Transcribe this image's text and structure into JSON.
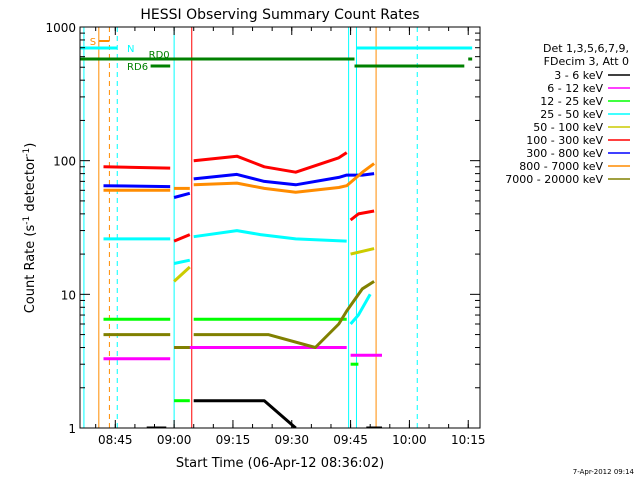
{
  "chart_data": {
    "type": "line",
    "title": "HESSI Observing Summary Count Rates",
    "xlabel": "Start Time (06-Apr-12 08:36:02)",
    "ylabel_main": "Count Rate (s",
    "ylabel_sup1": "-1",
    "ylabel_mid": " detector",
    "ylabel_sup2": "-1",
    "ylabel_end": ")",
    "x_unit": "minutes since 08:36:02",
    "x_range": [
      0,
      102
    ],
    "yscale": "log",
    "ylim": [
      1,
      1000
    ],
    "x_ticks": [
      {
        "v": 9,
        "label": "08:45"
      },
      {
        "v": 24,
        "label": "09:00"
      },
      {
        "v": 39,
        "label": "09:15"
      },
      {
        "v": 54,
        "label": "09:30"
      },
      {
        "v": 69,
        "label": "09:45"
      },
      {
        "v": 84,
        "label": "10:00"
      },
      {
        "v": 99,
        "label": "10:15"
      }
    ],
    "y_ticks": [
      {
        "v": 1,
        "label": "1"
      },
      {
        "v": 10,
        "label": "10"
      },
      {
        "v": 100,
        "label": "100"
      },
      {
        "v": 1000,
        "label": "1000"
      }
    ],
    "legend": {
      "header1": "Det 1,3,5,6,7,9,",
      "header2": "FDecim 3, Att 0",
      "entries": [
        {
          "label": "3 - 6 keV",
          "color": "#000000"
        },
        {
          "label": "6 - 12 keV",
          "color": "#ff00ff"
        },
        {
          "label": "12 - 25 keV",
          "color": "#00ff00"
        },
        {
          "label": "25 - 50 keV",
          "color": "#00ffff"
        },
        {
          "label": "50 - 100 keV",
          "color": "#cccc00"
        },
        {
          "label": "100 - 300 keV",
          "color": "#ff0000"
        },
        {
          "label": "300 - 800 keV",
          "color": "#0000ff"
        },
        {
          "label": "800 - 7000 keV",
          "color": "#ff8c00"
        },
        {
          "label": "7000 - 20000 keV",
          "color": "#808000"
        }
      ]
    },
    "flags": [
      {
        "label": "S",
        "color": "#ff8c00"
      },
      {
        "label": "N",
        "color": "#00ffff"
      },
      {
        "label": "RD0",
        "color": "#008000"
      },
      {
        "label": "RD6",
        "color": "#008000"
      }
    ],
    "series": [
      {
        "name": "3 - 6 keV",
        "color": "#000000",
        "segments": [
          [
            [
              17,
              1
            ],
            [
              22,
              1
            ]
          ],
          [
            [
              29,
              1.6
            ],
            [
              38,
              1.6
            ],
            [
              47,
              1.6
            ],
            [
              55,
              1
            ]
          ],
          [
            [
              73,
              1
            ],
            [
              77,
              1
            ]
          ]
        ]
      },
      {
        "name": "6 - 12 keV",
        "color": "#ff00ff",
        "segments": [
          [
            [
              6,
              3.3
            ],
            [
              23,
              3.3
            ]
          ],
          [
            [
              24,
              4
            ],
            [
              68,
              4
            ]
          ],
          [
            [
              69,
              3.5
            ],
            [
              77,
              3.5
            ]
          ]
        ]
      },
      {
        "name": "12 - 25 keV",
        "color": "#00ff00",
        "segments": [
          [
            [
              6,
              6.5
            ],
            [
              23,
              6.5
            ]
          ],
          [
            [
              24,
              1.6
            ],
            [
              28,
              1.6
            ]
          ],
          [
            [
              29,
              6.5
            ],
            [
              68,
              6.5
            ]
          ],
          [
            [
              69,
              3
            ],
            [
              71,
              3
            ]
          ]
        ]
      },
      {
        "name": "25 - 50 keV",
        "color": "#00ffff",
        "segments": [
          [
            [
              6,
              26
            ],
            [
              23,
              26
            ]
          ],
          [
            [
              24,
              17
            ],
            [
              28,
              18
            ]
          ],
          [
            [
              29,
              27
            ],
            [
              40,
              30
            ],
            [
              46,
              28
            ],
            [
              55,
              26
            ],
            [
              68,
              25
            ]
          ],
          [
            [
              69,
              6
            ],
            [
              71,
              7
            ],
            [
              74,
              10
            ]
          ]
        ]
      },
      {
        "name": "50 - 100 keV",
        "color": "#cccc00",
        "segments": [
          [
            [
              24,
              12.5
            ],
            [
              28,
              16
            ]
          ],
          [
            [
              69,
              20
            ],
            [
              75,
              22
            ]
          ]
        ]
      },
      {
        "name": "100 - 300 keV",
        "color": "#ff0000",
        "segments": [
          [
            [
              6,
              90
            ],
            [
              23,
              88
            ]
          ],
          [
            [
              24,
              25
            ],
            [
              28,
              28
            ]
          ],
          [
            [
              29,
              100
            ],
            [
              40,
              108
            ],
            [
              47,
              90
            ],
            [
              55,
              82
            ],
            [
              66,
              105
            ],
            [
              68,
              115
            ]
          ],
          [
            [
              69,
              36
            ],
            [
              71,
              40
            ],
            [
              75,
              42
            ]
          ]
        ]
      },
      {
        "name": "300 - 800 keV",
        "color": "#0000ff",
        "segments": [
          [
            [
              6,
              65
            ],
            [
              23,
              64
            ]
          ],
          [
            [
              24,
              53
            ],
            [
              28,
              57
            ]
          ],
          [
            [
              29,
              73
            ],
            [
              40,
              79
            ],
            [
              47,
              70
            ],
            [
              55,
              66
            ],
            [
              66,
              75
            ],
            [
              68,
              78
            ],
            [
              72,
              78
            ],
            [
              75,
              80
            ]
          ]
        ]
      },
      {
        "name": "800 - 7000 keV",
        "color": "#ff8c00",
        "segments": [
          [
            [
              6,
              60
            ],
            [
              23,
              60
            ]
          ],
          [
            [
              24,
              62
            ],
            [
              28,
              62
            ]
          ],
          [
            [
              29,
              66
            ],
            [
              40,
              68
            ],
            [
              47,
              62
            ],
            [
              55,
              58
            ],
            [
              66,
              63
            ],
            [
              68,
              65
            ],
            [
              72,
              82
            ],
            [
              75,
              95
            ]
          ]
        ]
      },
      {
        "name": "7000 - 20000 keV",
        "color": "#808000",
        "segments": [
          [
            [
              6,
              5
            ],
            [
              23,
              5
            ]
          ],
          [
            [
              24,
              4
            ],
            [
              28,
              4
            ]
          ],
          [
            [
              29,
              5
            ],
            [
              48,
              5
            ],
            [
              60,
              4
            ],
            [
              66,
              6
            ],
            [
              68,
              7.5
            ],
            [
              72,
              11
            ],
            [
              75,
              12.5
            ]
          ]
        ]
      }
    ]
  },
  "footer_date": "7-Apr-2012 09:14"
}
